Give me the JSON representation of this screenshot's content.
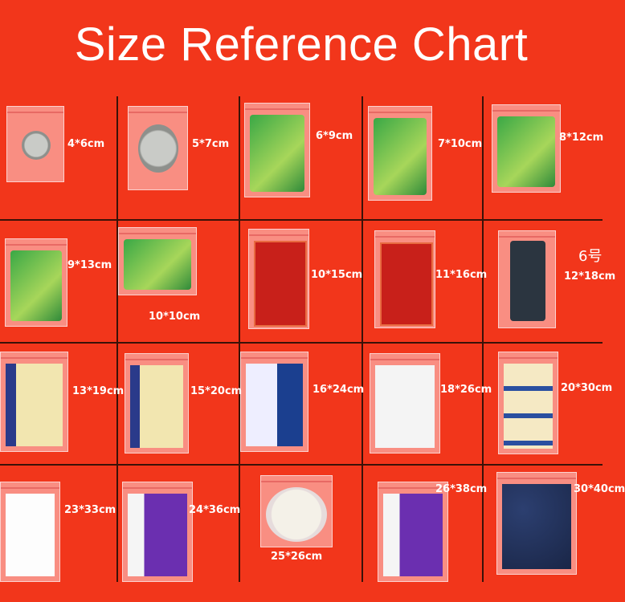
{
  "title": "Size Reference Chart",
  "colors": {
    "background": "#f2361b",
    "text": "#ffffff",
    "divider": "#3a1208"
  },
  "cells": [
    {
      "label": "4*6cm",
      "item": "coin"
    },
    {
      "label": "5*7cm",
      "item": "coins"
    },
    {
      "label": "6*9cm",
      "item": "card"
    },
    {
      "label": "7*10cm",
      "item": "card"
    },
    {
      "label": "8*12cm",
      "item": "card"
    },
    {
      "label": "9*13cm",
      "item": "card"
    },
    {
      "label": "10*10cm",
      "item": "card"
    },
    {
      "label": "10*15cm",
      "item": "red-box"
    },
    {
      "label": "11*16cm",
      "item": "red-box"
    },
    {
      "label": "12*18cm",
      "item": "phone",
      "size_number": "6号"
    },
    {
      "label": "13*19cm",
      "item": "ticket"
    },
    {
      "label": "15*20cm",
      "item": "ticket"
    },
    {
      "label": "16*24cm",
      "item": "notebook"
    },
    {
      "label": "18*26cm",
      "item": "form"
    },
    {
      "label": "20*30cm",
      "item": "tickets"
    },
    {
      "label": "23*33cm",
      "item": "white-paper"
    },
    {
      "label": "24*36cm",
      "item": "purple-folder"
    },
    {
      "label": "25*26cm",
      "item": "round-label"
    },
    {
      "label": "26*38cm",
      "item": "purple-folder"
    },
    {
      "label": "30*40cm",
      "item": "shirt"
    }
  ]
}
